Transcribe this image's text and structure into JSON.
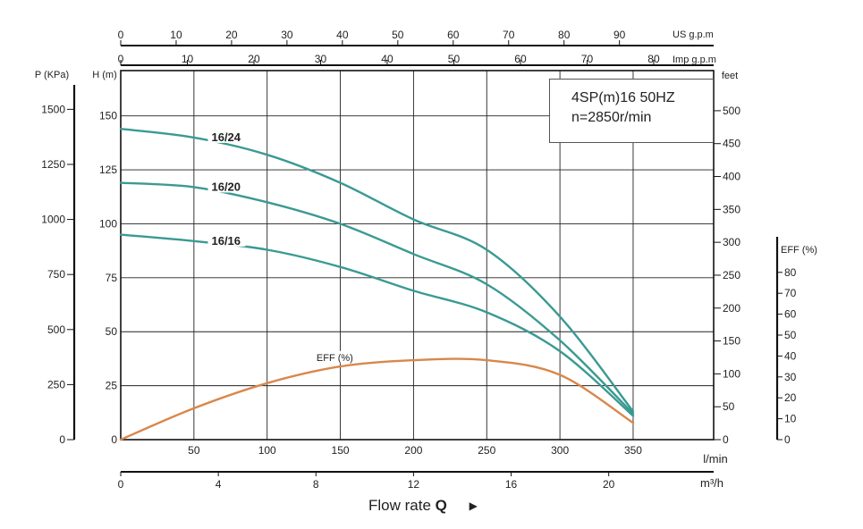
{
  "chart_data": {
    "type": "line",
    "title": "4SP(m)16  50HZ",
    "subtitle": "n=2850r/min",
    "xlabel": "Flow rate",
    "xlabel_symbol": "Q",
    "x_axis_primary": {
      "unit": "l/min",
      "range": [
        0,
        405
      ],
      "ticks": [
        50,
        100,
        150,
        200,
        250,
        300,
        350
      ]
    },
    "x_axis_m3h": {
      "unit": "m³/h",
      "range": [
        0,
        24.3
      ],
      "ticks": [
        0,
        4,
        8,
        12,
        16,
        20
      ]
    },
    "x_axis_us": {
      "unit": "US g.p.m",
      "range": [
        0,
        107
      ],
      "ticks": [
        0,
        10,
        20,
        30,
        40,
        50,
        60,
        70,
        80,
        90
      ]
    },
    "x_axis_imp": {
      "unit": "Imp g.p.m",
      "range": [
        0,
        89
      ],
      "ticks": [
        0,
        10,
        20,
        30,
        40,
        50,
        60,
        70,
        80
      ]
    },
    "y_axis_head": {
      "unit": "H (m)",
      "range": [
        0,
        171
      ],
      "ticks": [
        0,
        25,
        50,
        75,
        100,
        125,
        150
      ]
    },
    "y_axis_pressure": {
      "unit": "P (KPa)",
      "range": [
        0,
        1676
      ],
      "ticks": [
        0,
        250,
        500,
        750,
        1000,
        1250,
        1500
      ]
    },
    "y_axis_feet": {
      "unit": "feet",
      "range": [
        0,
        561
      ],
      "ticks": [
        0,
        50,
        100,
        150,
        200,
        250,
        300,
        350,
        400,
        450,
        500
      ]
    },
    "y_axis_eff": {
      "unit": "EFF (%)",
      "range": [
        0,
        100
      ],
      "ticks": [
        0,
        10,
        20,
        30,
        40,
        50,
        60,
        70,
        80
      ]
    },
    "grid": true,
    "series": [
      {
        "name": "16/24",
        "color": "#3a9a92",
        "x": [
          0,
          50,
          100,
          150,
          200,
          250,
          300,
          350
        ],
        "y": [
          144,
          140,
          132,
          119,
          102,
          88,
          57,
          13
        ]
      },
      {
        "name": "16/20",
        "color": "#3a9a92",
        "x": [
          0,
          50,
          100,
          150,
          200,
          250,
          300,
          350
        ],
        "y": [
          119,
          117,
          110,
          100,
          86,
          72,
          46,
          12
        ]
      },
      {
        "name": "16/16",
        "color": "#3a9a92",
        "x": [
          0,
          50,
          100,
          150,
          200,
          250,
          300,
          350
        ],
        "y": [
          95,
          92,
          88,
          80,
          69,
          59,
          41,
          11
        ]
      },
      {
        "name": "EFF (%)",
        "color": "#d9874a",
        "axis": "eff",
        "x": [
          0,
          50,
          100,
          150,
          200,
          250,
          300,
          350
        ],
        "y": [
          0,
          15,
          27,
          35,
          38,
          38,
          31,
          8
        ]
      }
    ]
  }
}
